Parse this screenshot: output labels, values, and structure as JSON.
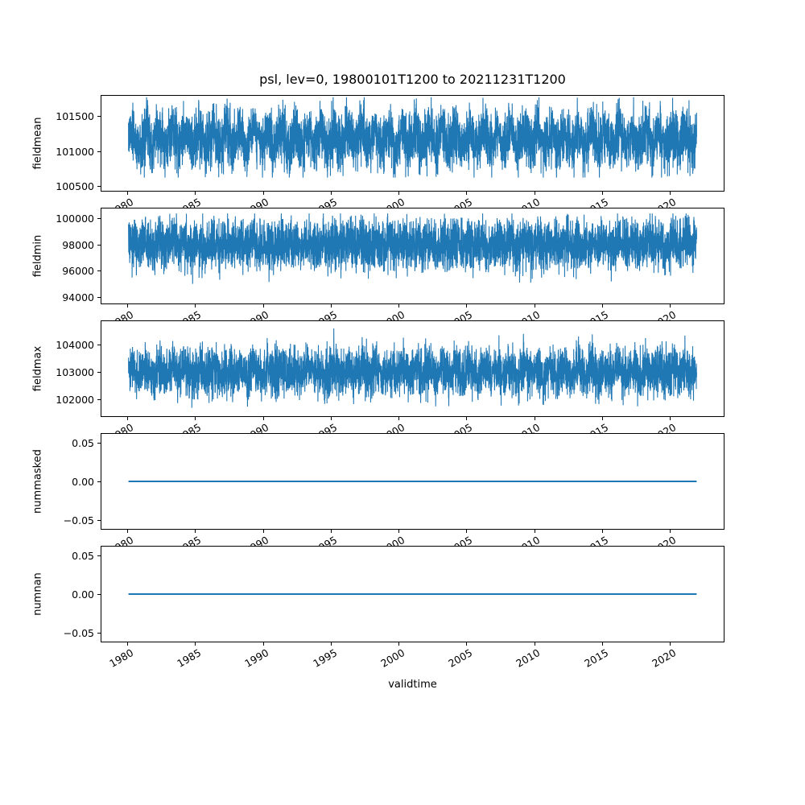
{
  "figure": {
    "title": "psl, lev=0, 19800101T1200 to 20211231T1200",
    "xlabel": "validtime",
    "line_color": "#1f77b4",
    "background_color": "#ffffff",
    "x_axis": {
      "lim": [
        1978,
        2024
      ],
      "tick_values": [
        1980,
        1985,
        1990,
        1995,
        2000,
        2005,
        2010,
        2015,
        2020
      ],
      "tick_labels": [
        "1980",
        "1985",
        "1990",
        "1995",
        "2000",
        "2005",
        "2010",
        "2015",
        "2020"
      ],
      "tick_label_rotation_deg": 30
    }
  },
  "chart_data": [
    {
      "type": "line",
      "ylabel": "fieldmean",
      "x_start": 1980.0,
      "x_end": 2022.0,
      "xlim": [
        1978,
        2024
      ],
      "ylim": [
        100430,
        101800
      ],
      "ytick_values": [
        100500,
        101000,
        101500
      ],
      "ytick_labels": [
        "100500",
        "101000",
        "101500"
      ],
      "grid": false,
      "series": [
        {
          "name": "fieldmean",
          "style": "noisy",
          "center": 101180,
          "sigma": 200,
          "seasonal_amp": 120,
          "clip_min": 100620,
          "clip_max": 101780,
          "spike_p": 0.004,
          "spike_mag": 380,
          "spike_dir": -1,
          "points": 5200
        }
      ]
    },
    {
      "type": "line",
      "ylabel": "fieldmin",
      "x_start": 1980.0,
      "x_end": 2022.0,
      "xlim": [
        1978,
        2024
      ],
      "ylim": [
        93500,
        100800
      ],
      "ytick_values": [
        94000,
        96000,
        98000,
        100000
      ],
      "ytick_labels": [
        "94000",
        "96000",
        "98000",
        "100000"
      ],
      "grid": false,
      "series": [
        {
          "name": "fieldmin",
          "style": "noisy",
          "center": 98050,
          "sigma": 950,
          "seasonal_amp": 200,
          "clip_min": 93900,
          "clip_max": 100420,
          "spike_p": 0.006,
          "spike_mag": 1700,
          "spike_dir": -1,
          "points": 5200
        }
      ]
    },
    {
      "type": "line",
      "ylabel": "fieldmax",
      "x_start": 1980.0,
      "x_end": 2022.0,
      "xlim": [
        1978,
        2024
      ],
      "ylim": [
        101380,
        104900
      ],
      "ytick_values": [
        102000,
        103000,
        104000
      ],
      "ytick_labels": [
        "102000",
        "103000",
        "104000"
      ],
      "grid": false,
      "series": [
        {
          "name": "fieldmax",
          "style": "noisy",
          "center": 103020,
          "sigma": 430,
          "seasonal_amp": 150,
          "clip_min": 101600,
          "clip_max": 104760,
          "spike_p": 0.008,
          "spike_mag": 1000,
          "spike_dir": 1,
          "points": 5200
        }
      ]
    },
    {
      "type": "line",
      "ylabel": "nummasked",
      "x_start": 1980.0,
      "x_end": 2022.0,
      "xlim": [
        1978,
        2024
      ],
      "ylim": [
        -0.0625,
        0.0625
      ],
      "ytick_values": [
        -0.05,
        0.0,
        0.05
      ],
      "ytick_labels": [
        "−0.05",
        "0.00",
        "0.05"
      ],
      "grid": false,
      "series": [
        {
          "name": "nummasked",
          "style": "flat",
          "value": 0.0,
          "points": 2
        }
      ]
    },
    {
      "type": "line",
      "ylabel": "numnan",
      "x_start": 1980.0,
      "x_end": 2022.0,
      "xlim": [
        1978,
        2024
      ],
      "ylim": [
        -0.0625,
        0.0625
      ],
      "ytick_values": [
        -0.05,
        0.0,
        0.05
      ],
      "ytick_labels": [
        "−0.05",
        "0.00",
        "0.05"
      ],
      "grid": false,
      "series": [
        {
          "name": "numnan",
          "style": "flat",
          "value": 0.0,
          "points": 2
        }
      ]
    }
  ]
}
